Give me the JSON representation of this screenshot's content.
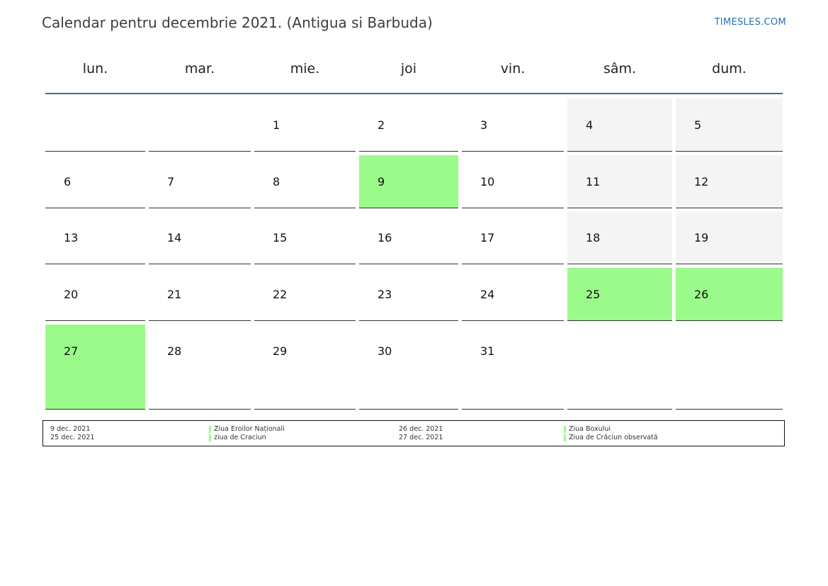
{
  "title": "Calendar pentru decembrie 2021. (Antigua si Barbuda)",
  "brand": "TIMESLES.COM",
  "colors": {
    "holiday": "#9bfb8a",
    "weekend": "#f4f4f4",
    "header_rule": "#4a6b8f",
    "brand": "#2a6fb5"
  },
  "weekdays": [
    "lun.",
    "mar.",
    "mie.",
    "joi",
    "vin.",
    "sâm.",
    "dum."
  ],
  "weeks": [
    [
      "",
      "",
      "1",
      "2",
      "3",
      "4",
      "5"
    ],
    [
      "6",
      "7",
      "8",
      "9",
      "10",
      "11",
      "12"
    ],
    [
      "13",
      "14",
      "15",
      "16",
      "17",
      "18",
      "19"
    ],
    [
      "20",
      "21",
      "22",
      "23",
      "24",
      "25",
      "26"
    ],
    [
      "27",
      "28",
      "29",
      "30",
      "31",
      "",
      ""
    ]
  ],
  "holiday_days": [
    "9",
    "25",
    "26",
    "27"
  ],
  "legend": {
    "left": [
      {
        "date": "9 dec. 2021",
        "name": "Ziua Eroilor Naționali"
      },
      {
        "date": "25 dec. 2021",
        "name": "ziua de Craciun"
      }
    ],
    "right": [
      {
        "date": "26 dec. 2021",
        "name": "Ziua Boxului"
      },
      {
        "date": "27 dec. 2021",
        "name": "Ziua de Crăciun observată"
      }
    ]
  }
}
